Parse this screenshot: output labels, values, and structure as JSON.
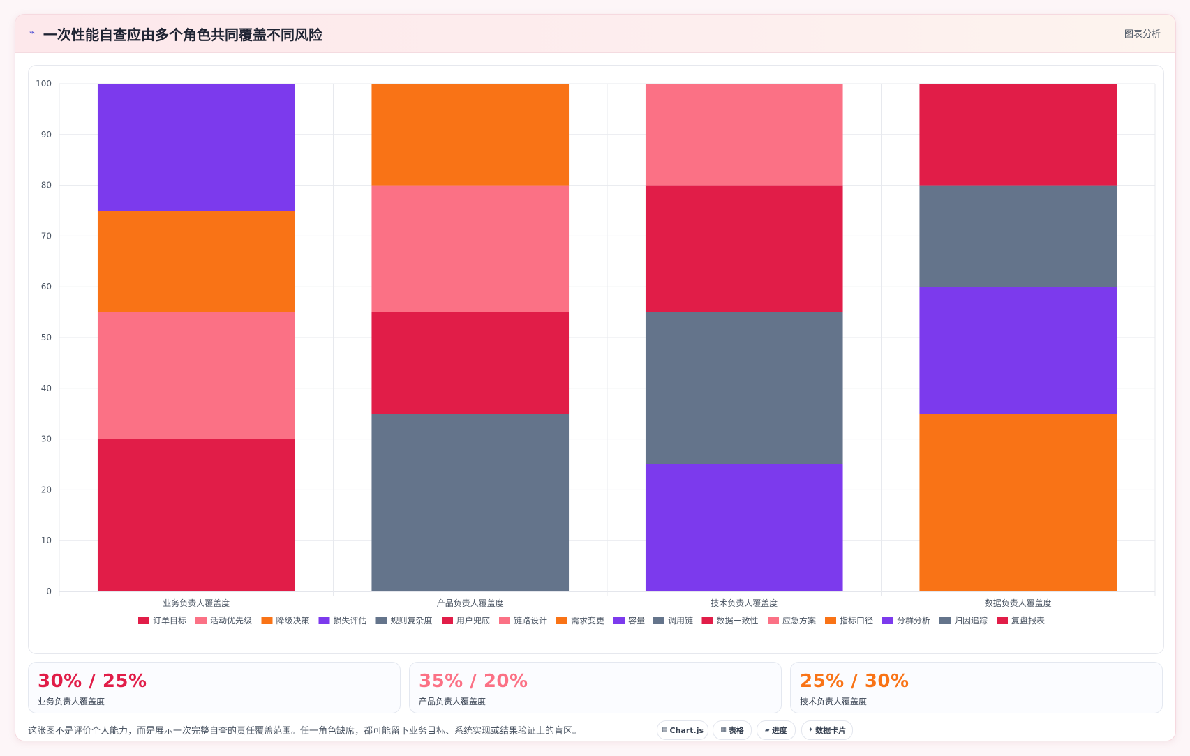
{
  "header": {
    "icon": "lightning-icon",
    "title": "一次性能自查应由多个角色共同覆盖不同风险",
    "tag": "图表分析"
  },
  "chart_data": {
    "type": "bar",
    "stacked": true,
    "categories": [
      "业务负责人覆盖度",
      "产品负责人覆盖度",
      "技术负责人覆盖度",
      "数据负责人覆盖度"
    ],
    "ylim": [
      0,
      100
    ],
    "yticks": [
      0,
      10,
      20,
      30,
      40,
      50,
      60,
      70,
      80,
      90,
      100
    ],
    "grid": true,
    "legend_position": "bottom",
    "series": [
      {
        "name": "订单目标",
        "color": "#e11d48",
        "values": [
          30,
          0,
          0,
          0
        ]
      },
      {
        "name": "活动优先级",
        "color": "#fb7185",
        "values": [
          25,
          0,
          0,
          0
        ]
      },
      {
        "name": "降级决策",
        "color": "#f97316",
        "values": [
          20,
          0,
          0,
          0
        ]
      },
      {
        "name": "损失评估",
        "color": "#7c3aed",
        "values": [
          25,
          0,
          0,
          0
        ]
      },
      {
        "name": "规则复杂度",
        "color": "#64748b",
        "values": [
          0,
          35,
          0,
          0
        ]
      },
      {
        "name": "用户兜底",
        "color": "#e11d48",
        "values": [
          0,
          20,
          0,
          0
        ]
      },
      {
        "name": "链路设计",
        "color": "#fb7185",
        "values": [
          0,
          25,
          0,
          0
        ]
      },
      {
        "name": "需求变更",
        "color": "#f97316",
        "values": [
          0,
          20,
          0,
          0
        ]
      },
      {
        "name": "容量",
        "color": "#7c3aed",
        "values": [
          0,
          0,
          25,
          0
        ]
      },
      {
        "name": "调用链",
        "color": "#64748b",
        "values": [
          0,
          0,
          30,
          0
        ]
      },
      {
        "name": "数据一致性",
        "color": "#e11d48",
        "values": [
          0,
          0,
          25,
          0
        ]
      },
      {
        "name": "应急方案",
        "color": "#fb7185",
        "values": [
          0,
          0,
          20,
          0
        ]
      },
      {
        "name": "指标口径",
        "color": "#f97316",
        "values": [
          0,
          0,
          0,
          35
        ]
      },
      {
        "name": "分群分析",
        "color": "#7c3aed",
        "values": [
          0,
          0,
          0,
          25
        ]
      },
      {
        "name": "归因追踪",
        "color": "#64748b",
        "values": [
          0,
          0,
          0,
          20
        ]
      },
      {
        "name": "复盘报表",
        "color": "#e11d48",
        "values": [
          0,
          0,
          0,
          20
        ]
      }
    ]
  },
  "kpis": [
    {
      "value": "30% / 25%",
      "label": "业务负责人覆盖度",
      "color": "#e11d48"
    },
    {
      "value": "35% / 20%",
      "label": "产品负责人覆盖度",
      "color": "#fb7185"
    },
    {
      "value": "25% / 30%",
      "label": "技术负责人覆盖度",
      "color": "#f97316"
    }
  ],
  "note": "这张图不是评价个人能力，而是展示一次完整自查的责任覆盖范围。任一角色缺席，都可能留下业务目标、系统实现或结果验证上的盲区。",
  "chips": [
    {
      "icon": "chart-icon",
      "label": "Chart.js"
    },
    {
      "icon": "table-icon",
      "label": "表格"
    },
    {
      "icon": "progress-icon",
      "label": "进度"
    },
    {
      "icon": "card-icon",
      "label": "数据卡片"
    }
  ]
}
